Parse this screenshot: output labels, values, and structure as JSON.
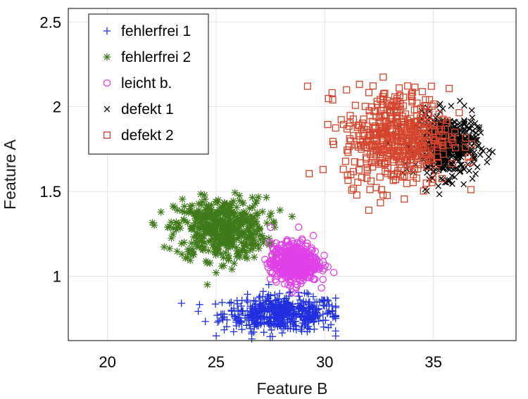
{
  "chart_data": {
    "type": "scatter",
    "xlabel": "Feature B",
    "ylabel": "Feature A",
    "xlim": [
      18.2,
      38.8
    ],
    "ylim": [
      0.62,
      2.58
    ],
    "xticks": [
      20,
      25,
      30,
      35
    ],
    "yticks": [
      1,
      1.5,
      2,
      2.5
    ],
    "x_tick_labels": [
      "20",
      "25",
      "30",
      "35"
    ],
    "y_tick_labels": [
      "1",
      "1.5",
      "2",
      "2.5"
    ],
    "grid": true,
    "legend_position": "top-left",
    "series": [
      {
        "name": "fehlerfrei 1",
        "marker": "plus",
        "color": "#1f2fe0",
        "center": [
          28.0,
          0.78
        ],
        "spread": [
          2.4,
          0.08
        ],
        "x_range": [
          21.5,
          30.5
        ],
        "y_range": [
          0.63,
          0.98
        ],
        "count": 500
      },
      {
        "name": "fehlerfrei 2",
        "marker": "asterisk",
        "color": "#3f7a1a",
        "center": [
          25.2,
          1.28
        ],
        "spread": [
          1.9,
          0.14
        ],
        "x_range": [
          19.0,
          30.5
        ],
        "y_range": [
          0.95,
          1.62
        ],
        "count": 500
      },
      {
        "name": "leicht b.",
        "marker": "circle",
        "color": "#e040e8",
        "center": [
          28.6,
          1.08
        ],
        "spread": [
          1.0,
          0.09
        ],
        "x_range": [
          26.0,
          31.5
        ],
        "y_range": [
          0.85,
          1.32
        ],
        "count": 500
      },
      {
        "name": "defekt 1",
        "marker": "x",
        "color": "#000000",
        "center": [
          35.6,
          1.77
        ],
        "spread": [
          1.3,
          0.14
        ],
        "x_range": [
          32.0,
          38.5
        ],
        "y_range": [
          1.42,
          2.22
        ],
        "count": 500
      },
      {
        "name": "defekt 2",
        "marker": "square",
        "color": "#d5452c",
        "center": [
          33.3,
          1.82
        ],
        "spread": [
          2.2,
          0.22
        ],
        "x_range": [
          26.5,
          38.5
        ],
        "y_range": [
          1.3,
          2.55
        ],
        "count": 500
      }
    ]
  }
}
